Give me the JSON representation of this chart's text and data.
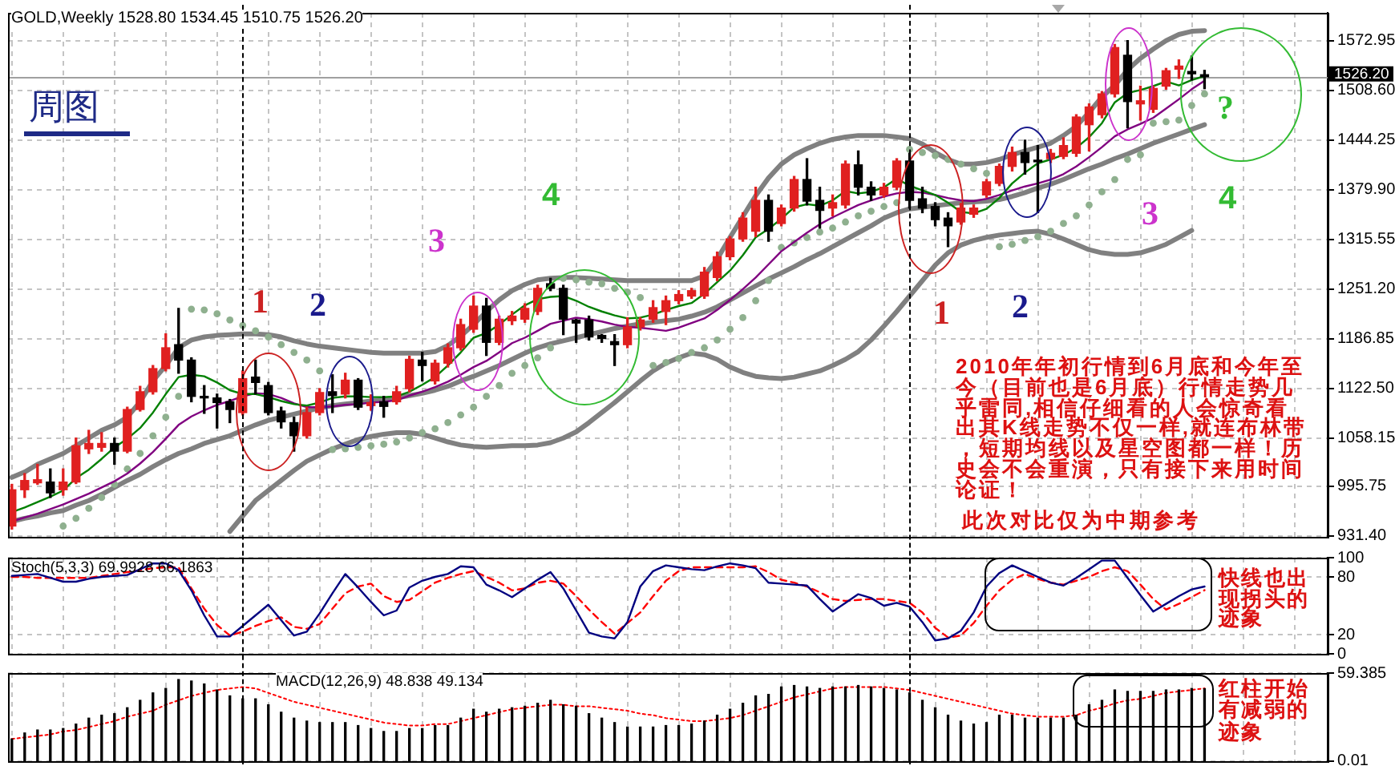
{
  "chart_data": [
    {
      "type": "candlestick",
      "title": "周图",
      "subtitle": "GOLD,Weekly 1528.80 1534.45 1510.75 1526.20",
      "categories": [
        null,
        null,
        null,
        null,
        null,
        null,
        null,
        null,
        null,
        null,
        null,
        null,
        null,
        null,
        null,
        null,
        null,
        null,
        null,
        null,
        null,
        null,
        null,
        null,
        null,
        null,
        null,
        null,
        null,
        null,
        null,
        null,
        null,
        null,
        null,
        null,
        null,
        null,
        null,
        null,
        null,
        null,
        null,
        null,
        null,
        null,
        null,
        null,
        null,
        null,
        null,
        null,
        null,
        null,
        null,
        null,
        null,
        null,
        null,
        null,
        null,
        null,
        null,
        null,
        null,
        null,
        null,
        null,
        null,
        null,
        null,
        null,
        null,
        null,
        null,
        null,
        null,
        null,
        null,
        null,
        null,
        null,
        null,
        null,
        null,
        null,
        null,
        null,
        null,
        null,
        null,
        null,
        null,
        null
      ],
      "ohlc": [
        [
          944,
          998,
          940,
          991
        ],
        [
          991,
          1012,
          981,
          1003
        ],
        [
          1000,
          1024,
          998,
          1004
        ],
        [
          1001,
          1018,
          981,
          987
        ],
        [
          991,
          1018,
          984,
          1001
        ],
        [
          1001,
          1058,
          999,
          1048
        ],
        [
          1044,
          1068,
          1038,
          1051
        ],
        [
          1046,
          1065,
          1041,
          1051
        ],
        [
          1051,
          1058,
          1024,
          1041
        ],
        [
          1041,
          1098,
          1039,
          1095
        ],
        [
          1095,
          1125,
          1093,
          1118
        ],
        [
          1118,
          1152,
          1115,
          1148
        ],
        [
          1148,
          1193,
          1145,
          1175
        ],
        [
          1179,
          1226,
          1142,
          1159
        ],
        [
          1159,
          1162,
          1105,
          1112
        ],
        [
          1112,
          1126,
          1090,
          1110
        ],
        [
          1110,
          1115,
          1071,
          1104
        ],
        [
          1105,
          1108,
          1078,
          1095
        ],
        [
          1091,
          1145,
          1088,
          1135
        ],
        [
          1137,
          1159,
          1115,
          1130
        ],
        [
          1126,
          1130,
          1088,
          1091
        ],
        [
          1093,
          1098,
          1071,
          1079
        ],
        [
          1078,
          1085,
          1041,
          1061
        ],
        [
          1061,
          1098,
          1058,
          1091
        ],
        [
          1091,
          1122,
          1088,
          1117
        ],
        [
          1118,
          1140,
          1091,
          1113
        ],
        [
          1115,
          1142,
          1110,
          1133
        ],
        [
          1133,
          1135,
          1095,
          1098
        ],
        [
          1100,
          1114,
          1094,
          1104
        ],
        [
          1105,
          1112,
          1085,
          1099
        ],
        [
          1105,
          1125,
          1102,
          1118
        ],
        [
          1122,
          1164,
          1118,
          1160
        ],
        [
          1159,
          1169,
          1132,
          1152
        ],
        [
          1132,
          1159,
          1128,
          1155
        ],
        [
          1155,
          1180,
          1150,
          1175
        ],
        [
          1175,
          1212,
          1172,
          1205
        ],
        [
          1199,
          1242,
          1195,
          1229
        ],
        [
          1229,
          1239,
          1165,
          1182
        ],
        [
          1182,
          1216,
          1179,
          1212
        ],
        [
          1210,
          1222,
          1205,
          1216
        ],
        [
          1212,
          1232,
          1208,
          1226
        ],
        [
          1222,
          1256,
          1218,
          1252
        ],
        [
          1258,
          1265,
          1249,
          1252
        ],
        [
          1252,
          1256,
          1192,
          1212
        ],
        [
          1211,
          1212,
          1182,
          1207
        ],
        [
          1211,
          1216,
          1185,
          1189
        ],
        [
          1191,
          1192,
          1182,
          1187
        ],
        [
          1183,
          1192,
          1152,
          1179
        ],
        [
          1179,
          1214,
          1175,
          1202
        ],
        [
          1202,
          1214,
          1198,
          1211
        ],
        [
          1212,
          1236,
          1208,
          1227
        ],
        [
          1222,
          1242,
          1205,
          1236
        ],
        [
          1236,
          1249,
          1232,
          1244
        ],
        [
          1242,
          1252,
          1239,
          1249
        ],
        [
          1242,
          1279,
          1239,
          1273
        ],
        [
          1266,
          1299,
          1262,
          1293
        ],
        [
          1293,
          1319,
          1289,
          1316
        ],
        [
          1316,
          1350,
          1313,
          1343
        ],
        [
          1326,
          1383,
          1319,
          1366
        ],
        [
          1366,
          1373,
          1313,
          1326
        ],
        [
          1336,
          1360,
          1333,
          1356
        ],
        [
          1356,
          1397,
          1352,
          1393
        ],
        [
          1393,
          1420,
          1360,
          1365
        ],
        [
          1366,
          1383,
          1330,
          1353
        ],
        [
          1356,
          1373,
          1346,
          1363
        ],
        [
          1360,
          1417,
          1356,
          1413
        ],
        [
          1412,
          1430,
          1373,
          1383
        ],
        [
          1383,
          1390,
          1366,
          1373
        ],
        [
          1373,
          1388,
          1370,
          1383
        ],
        [
          1383,
          1420,
          1380,
          1417
        ],
        [
          1417,
          1427,
          1356,
          1366
        ],
        [
          1368,
          1383,
          1350,
          1356
        ],
        [
          1358,
          1363,
          1333,
          1341
        ],
        [
          1343,
          1350,
          1306,
          1333
        ],
        [
          1338,
          1362,
          1335,
          1356
        ],
        [
          1348,
          1360,
          1344,
          1356
        ],
        [
          1373,
          1393,
          1370,
          1390
        ],
        [
          1388,
          1413,
          1385,
          1410
        ],
        [
          1410,
          1435,
          1404,
          1428
        ],
        [
          1428,
          1444,
          1400,
          1415
        ],
        [
          1418,
          1437,
          1350,
          1416
        ],
        [
          1420,
          1432,
          1415,
          1427
        ],
        [
          1423,
          1447,
          1420,
          1437
        ],
        [
          1427,
          1477,
          1423,
          1474
        ],
        [
          1464,
          1491,
          1430,
          1487
        ],
        [
          1477,
          1507,
          1473,
          1504
        ],
        [
          1504,
          1568,
          1500,
          1564
        ],
        [
          1554,
          1573,
          1460,
          1494
        ],
        [
          1491,
          1514,
          1470,
          1495
        ],
        [
          1484,
          1514,
          1480,
          1511
        ],
        [
          1514,
          1537,
          1510,
          1534
        ],
        [
          1536,
          1548,
          1524,
          1540
        ],
        [
          1533,
          1553,
          1522,
          1530
        ],
        [
          1528.8,
          1534.45,
          1510.75,
          1526.2
        ]
      ],
      "colors": [
        "#e02020",
        "#e02020",
        "#e02020",
        "#000000",
        "#e02020",
        "#e02020",
        "#e02020",
        "#e02020",
        "#000000",
        "#e02020",
        "#e02020",
        "#e02020",
        "#e02020",
        "#000000",
        "#000000",
        "#000000",
        "#000000",
        "#000000",
        "#e02020",
        "#000000",
        "#000000",
        "#000000",
        "#000000",
        "#e02020",
        "#e02020",
        "#000000",
        "#e02020",
        "#000000",
        "#e02020",
        "#000000",
        "#e02020",
        "#e02020",
        "#000000",
        "#e02020",
        "#e02020",
        "#e02020",
        "#e02020",
        "#000000",
        "#e02020",
        "#e02020",
        "#e02020",
        "#e02020",
        "#000000",
        "#000000",
        "#000000",
        "#000000",
        "#000000",
        "#000000",
        "#e02020",
        "#e02020",
        "#e02020",
        "#e02020",
        "#e02020",
        "#e02020",
        "#e02020",
        "#e02020",
        "#e02020",
        "#e02020",
        "#e02020",
        "#000000",
        "#e02020",
        "#e02020",
        "#000000",
        "#000000",
        "#e02020",
        "#e02020",
        "#000000",
        "#000000",
        "#e02020",
        "#e02020",
        "#000000",
        "#000000",
        "#000000",
        "#000000",
        "#e02020",
        "#e02020",
        "#e02020",
        "#e02020",
        "#e02020",
        "#000000",
        "#000000",
        "#e02020",
        "#e02020",
        "#e02020",
        "#e02020",
        "#e02020",
        "#e02020",
        "#000000",
        "#e02020",
        "#e02020",
        "#e02020",
        "#e02020",
        "#000000",
        "#000000"
      ],
      "series": [
        {
          "type": "line",
          "color": "#808080",
          "values": [
            1007,
            1014,
            1024,
            1031,
            1038,
            1048,
            1058,
            1068,
            1075,
            1085,
            1105,
            1132,
            1152,
            1175,
            1185,
            1189,
            1191,
            1192,
            1193,
            1193,
            1192,
            1189,
            1184,
            1180,
            1177,
            1175,
            1173,
            1171,
            1169,
            1168,
            1168,
            1168,
            1168,
            1170,
            1178,
            1190,
            1205,
            1222,
            1237,
            1249,
            1257,
            1263,
            1265,
            1266,
            1266,
            1265,
            1264,
            1263,
            1262,
            1262,
            1262,
            1262,
            1262,
            1262,
            1268,
            1290,
            1318,
            1345,
            1372,
            1395,
            1413,
            1425,
            1433,
            1440,
            1445,
            1448,
            1450,
            1450,
            1450,
            1448,
            1446,
            1439,
            1428,
            1419,
            1413,
            1413,
            1415,
            1419,
            1425,
            1430,
            1435,
            1440,
            1450,
            1462,
            1480,
            1500,
            1515,
            1535,
            1550,
            1562,
            1573,
            1581,
            1585,
            1586
          ]
        },
        {
          "type": "line",
          "color": "#808080",
          "values": [
            950,
            954,
            957,
            961,
            964,
            971,
            977,
            985,
            994,
            1003,
            1011,
            1021,
            1030,
            1038,
            1044,
            1051,
            1056,
            1061,
            1068,
            1075,
            1081,
            1085,
            1089,
            1093,
            1097,
            1100,
            1102,
            1104,
            1106,
            1108,
            1110,
            1113,
            1116,
            1120,
            1125,
            1132,
            1138,
            1145,
            1152,
            1160,
            1168,
            1175,
            1180,
            1184,
            1188,
            1192,
            1196,
            1200,
            1203,
            1206,
            1208,
            1210,
            1212,
            1216,
            1221,
            1228,
            1237,
            1246,
            1255,
            1264,
            1272,
            1280,
            1289,
            1297,
            1306,
            1315,
            1324,
            1333,
            1343,
            1350,
            1355,
            1357,
            1359,
            1361,
            1363,
            1364,
            1365,
            1367,
            1371,
            1376,
            1382,
            1387,
            1393,
            1400,
            1407,
            1413,
            1420,
            1426,
            1433,
            1440,
            1446,
            1452,
            1458,
            1464
          ]
        },
        {
          "type": "line",
          "color": "#808080",
          "values": [
            null,
            null,
            null,
            null,
            null,
            null,
            null,
            null,
            null,
            null,
            null,
            null,
            null,
            null,
            null,
            null,
            null,
            937,
            957,
            977,
            990,
            1003,
            1016,
            1028,
            1036,
            1044,
            1050,
            1056,
            1060,
            1063,
            1065,
            1065,
            1063,
            1058,
            1053,
            1049,
            1047,
            1046,
            1047,
            1048,
            1048,
            1049,
            1052,
            1058,
            1066,
            1078,
            1091,
            1104,
            1118,
            1132,
            1145,
            1155,
            1162,
            1168,
            1166,
            1160,
            1150,
            1143,
            1138,
            1136,
            1135,
            1137,
            1141,
            1145,
            1152,
            1160,
            1170,
            1185,
            1203,
            1222,
            1242,
            1262,
            1282,
            1298,
            1308,
            1314,
            1318,
            1321,
            1323,
            1325,
            1326,
            1322,
            1316,
            1309,
            1302,
            1298,
            1296,
            1296,
            1298,
            1303,
            1309,
            1318,
            1327,
            null
          ]
        },
        {
          "type": "line",
          "color": "#008000",
          "values": [
            962,
            968,
            975,
            982,
            990,
            1006,
            1017,
            1031,
            1046,
            1057,
            1071,
            1091,
            1115,
            1137,
            1140,
            1138,
            1130,
            1120,
            1115,
            1115,
            1111,
            1106,
            1102,
            1100,
            1104,
            1110,
            1112,
            1112,
            1111,
            1111,
            1112,
            1118,
            1127,
            1137,
            1152,
            1169,
            1188,
            1194,
            1205,
            1218,
            1230,
            1238,
            1241,
            1242,
            1236,
            1228,
            1222,
            1217,
            1213,
            1214,
            1218,
            1224,
            1229,
            1233,
            1245,
            1260,
            1275,
            1295,
            1318,
            1329,
            1342,
            1357,
            1361,
            1359,
            1366,
            1378,
            1375,
            1377,
            1383,
            1394,
            1385,
            1379,
            1373,
            1363,
            1351,
            1349,
            1355,
            1369,
            1388,
            1402,
            1414,
            1419,
            1425,
            1434,
            1448,
            1466,
            1493,
            1505,
            1509,
            1514,
            1520,
            1515,
            1522,
            1527
          ]
        },
        {
          "type": "line",
          "color": "#800080",
          "values": [
            950,
            955,
            960,
            966,
            972,
            979,
            986,
            994,
            1002,
            1012,
            1025,
            1040,
            1057,
            1075,
            1086,
            1094,
            1101,
            1106,
            1112,
            1116,
            1115,
            1110,
            1103,
            1098,
            1098,
            1099,
            1101,
            1102,
            1104,
            1105,
            1107,
            1113,
            1118,
            1124,
            1131,
            1140,
            1150,
            1158,
            1169,
            1181,
            1188,
            1197,
            1206,
            1210,
            1214,
            1212,
            1209,
            1205,
            1202,
            1201,
            1199,
            1197,
            1201,
            1207,
            1213,
            1224,
            1237,
            1251,
            1266,
            1283,
            1300,
            1312,
            1324,
            1335,
            1344,
            1352,
            1360,
            1366,
            1371,
            1375,
            1377,
            1376,
            1373,
            1369,
            1366,
            1365,
            1368,
            1373,
            1379,
            1384,
            1388,
            1393,
            1400,
            1410,
            1422,
            1435,
            1449,
            1458,
            1465,
            1473,
            1485,
            1497,
            1510,
            1521
          ]
        },
        {
          "type": "scatter",
          "color": "#8fb08f",
          "marker": "circle",
          "values": [
            null,
            null,
            null,
            null,
            944,
            954,
            967,
            981,
            998,
            1018,
            1038,
            1061,
            1085,
            1112,
            1225,
            1224,
            1219,
            1211,
            1204,
            1197,
            1189,
            1179,
            1169,
            1159,
            1145,
            1043,
            1044,
            1046,
            1048,
            1050,
            1053,
            1058,
            1065,
            1070,
            1078,
            1088,
            1098,
            1112,
            1126,
            1142,
            1152,
            1162,
            1175,
            1265,
            1263,
            1260,
            1258,
            1252,
            1247,
            1240,
            1152,
            1156,
            1161,
            1169,
            1175,
            1185,
            1199,
            1214,
            1236,
            1262,
            1305,
            1311,
            1318,
            1325,
            1330,
            1338,
            1346,
            1352,
            1358,
            1363,
            1432,
            1428,
            1424,
            1419,
            1413,
            1407,
            1401,
            1306,
            1309,
            1314,
            1319,
            1326,
            1336,
            1346,
            1360,
            1377,
            1393,
            1419,
            1425,
            1466,
            1468,
            1470,
            1489,
            1504
          ]
        }
      ],
      "ylim": [
        930,
        1609
      ],
      "yticks": [
        {
          "value": 931.4,
          "label": "931.40"
        },
        995.75,
        1058.15,
        {
          "value": 1122.5,
          "label": "1122.50"
        },
        1186.85,
        {
          "value": 1251.2,
          "label": "1251.20"
        },
        1315.55,
        {
          "value": 1379.9,
          "label": "1379.90"
        },
        1444.25,
        {
          "value": 1508.6,
          "label": "1508.60"
        },
        1572.95
      ],
      "grid": true,
      "tick_labels": "y",
      "ref_lines": [
        {
          "axis": "y",
          "value": 1526.2,
          "label": "1526.20",
          "color": "#a0a0a0"
        }
      ],
      "annotations": [
        "1",
        "2",
        "3",
        "4",
        "1",
        "2",
        "3",
        "4",
        "?",
        "2010年年初行情到6月底和今年至今（目前也是6月底）行情走势几乎雷同,相信仔细看的人会惊奇看出其K线走势不仅一样,就连布林带，短期均线以及星空图都一样！历史会不会重演，只有接下来用时间论证！",
        "此次对比仅为中期参考"
      ]
    },
    {
      "type": "line",
      "title": "Stoch(5,3,3) 69.9928 66.1863",
      "categories": [
        null,
        null,
        null,
        null,
        null,
        null,
        null,
        null,
        null,
        null,
        null,
        null,
        null,
        null,
        null,
        null,
        null,
        null,
        null,
        null,
        null,
        null,
        null,
        null,
        null,
        null,
        null,
        null,
        null,
        null,
        null,
        null,
        null,
        null,
        null,
        null,
        null,
        null,
        null,
        null,
        null,
        null,
        null,
        null,
        null,
        null,
        null,
        null,
        null,
        null,
        null,
        null,
        null,
        null,
        null,
        null,
        null,
        null,
        null,
        null,
        null,
        null,
        null,
        null,
        null,
        null,
        null,
        null,
        null,
        null,
        null,
        null,
        null,
        null,
        null,
        null,
        null,
        null,
        null,
        null,
        null,
        null,
        null,
        null,
        null,
        null,
        null,
        null,
        null,
        null,
        null,
        null,
        null,
        null
      ],
      "series": [
        {
          "type": "line",
          "color": "#000080",
          "values": [
            81,
            82,
            83,
            79,
            75,
            75,
            78,
            80,
            81,
            82,
            88,
            94,
            94,
            87,
            66,
            40,
            18,
            18,
            29,
            40,
            51,
            35,
            19,
            23,
            42,
            63,
            83,
            69,
            54,
            40,
            45,
            69,
            76,
            80,
            83,
            91,
            90,
            72,
            66,
            59,
            68,
            77,
            85,
            68,
            45,
            22,
            18,
            16,
            33,
            70,
            86,
            92,
            90,
            88,
            87,
            91,
            94,
            92,
            89,
            74,
            73,
            72,
            71,
            57,
            44,
            53,
            62,
            58,
            50,
            53,
            49,
            33,
            14,
            16,
            24,
            43,
            70,
            84,
            92,
            86,
            80,
            74,
            71,
            79,
            88,
            97,
            97,
            79,
            61,
            44,
            52,
            60,
            67,
            69.9928
          ]
        },
        {
          "type": "line",
          "color": "#ff0000",
          "line_style": "dashed",
          "values": [
            80,
            80,
            79,
            79,
            79,
            79,
            79,
            81,
            83,
            85,
            87,
            89,
            90,
            90,
            68,
            47,
            30,
            19,
            23,
            29,
            34,
            38,
            28,
            26,
            31,
            47,
            63,
            70,
            73,
            60,
            54,
            56,
            65,
            74,
            79,
            83,
            86,
            80,
            74,
            66,
            68,
            74,
            76,
            73,
            60,
            46,
            33,
            21,
            32,
            43,
            60,
            76,
            86,
            90,
            90,
            90,
            90,
            90,
            91,
            85,
            77,
            74,
            70,
            64,
            57,
            55,
            56,
            57,
            57,
            55,
            53,
            43,
            27,
            17,
            19,
            32,
            50,
            66,
            77,
            83,
            78,
            74,
            72,
            76,
            80,
            86,
            90,
            86,
            72,
            57,
            46,
            52,
            59,
            66.1863
          ]
        }
      ],
      "ylim": [
        0,
        100
      ],
      "yticks": [
        0,
        20,
        80,
        100
      ],
      "grid": true,
      "tick_labels": "y",
      "annotations": [
        "快线也出现拐头的迹象"
      ]
    },
    {
      "type": "line",
      "title": "MACD(12,26,9) 48.838 49.134",
      "categories": [
        null,
        null,
        null,
        null,
        null,
        null,
        null,
        null,
        null,
        null,
        null,
        null,
        null,
        null,
        null,
        null,
        null,
        null,
        null,
        null,
        null,
        null,
        null,
        null,
        null,
        null,
        null,
        null,
        null,
        null,
        null,
        null,
        null,
        null,
        null,
        null,
        null,
        null,
        null,
        null,
        null,
        null,
        null,
        null,
        null,
        null,
        null,
        null,
        null,
        null,
        null,
        null,
        null,
        null,
        null,
        null,
        null,
        null,
        null,
        null,
        null,
        null,
        null,
        null,
        null,
        null,
        null,
        null,
        null,
        null,
        null,
        null,
        null,
        null,
        null,
        null,
        null,
        null,
        null,
        null,
        null,
        null,
        null,
        null,
        null,
        null,
        null,
        null,
        null,
        null,
        null,
        null,
        null,
        null
      ],
      "series": [
        {
          "type": "bar",
          "color": "#000000",
          "values": [
            15,
            19,
            21,
            21,
            22,
            25,
            29,
            31,
            32,
            36,
            41,
            46,
            49,
            55,
            54,
            52,
            48,
            44,
            42,
            42,
            38,
            33,
            29,
            27,
            26,
            26,
            26,
            24,
            22,
            20,
            20,
            22,
            22,
            24,
            24,
            29,
            35,
            33,
            35,
            36,
            37,
            39,
            41,
            38,
            37,
            32,
            29,
            26,
            23,
            23,
            23,
            24,
            24,
            25,
            27,
            31,
            35,
            39,
            44,
            45,
            50,
            51,
            50,
            49,
            50,
            50,
            51,
            50,
            49,
            48,
            46,
            41,
            36,
            31,
            27,
            25,
            26,
            31,
            31,
            29,
            29,
            29,
            29,
            31,
            38,
            41,
            48,
            47,
            47,
            47,
            48,
            48,
            49,
            48.838
          ]
        },
        {
          "type": "line",
          "color": "#ff0000",
          "line_style": "dotted",
          "values": [
            15,
            16,
            17,
            18,
            20,
            21,
            23,
            25,
            27,
            30,
            32,
            34,
            38,
            41,
            44,
            46,
            48,
            49,
            50,
            49,
            46,
            43,
            40,
            38,
            36,
            34,
            32,
            30,
            28,
            26,
            25,
            24,
            24,
            25,
            25,
            27,
            29,
            31,
            33,
            35,
            36,
            37,
            38,
            38,
            37,
            37,
            36,
            35,
            34,
            32,
            31,
            29,
            28,
            27,
            27,
            28,
            29,
            31,
            34,
            37,
            40,
            43,
            45,
            47,
            49,
            50,
            50,
            50,
            50,
            49,
            48,
            46,
            44,
            42,
            40,
            38,
            36,
            34,
            32,
            31,
            30,
            30,
            30,
            31,
            34,
            36,
            39,
            41,
            42,
            44,
            46,
            47,
            48,
            49.134
          ]
        }
      ],
      "ylim": [
        0,
        59.385
      ],
      "yticks": [
        0.01,
        59.385
      ],
      "grid": true,
      "tick_labels": "y",
      "annotations": [
        "红柱开始有减弱的迹象"
      ]
    }
  ]
}
